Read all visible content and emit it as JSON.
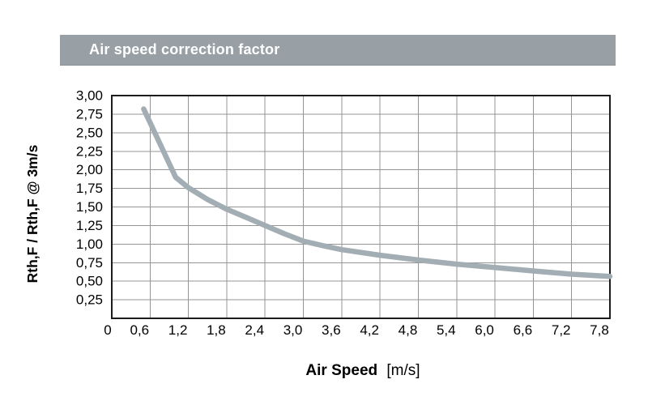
{
  "header": {
    "title": "Air speed correction factor"
  },
  "colors": {
    "title_bar_bg": "#98a0a5",
    "title_text": "#ffffff",
    "curve": "#a2adb4",
    "grid": "#949494",
    "border": "#1c1c1c",
    "text": "#000000"
  },
  "chart_data": {
    "type": "line",
    "title": "Air speed correction factor",
    "xlabel": "Air Speed",
    "xlabel_unit": "[m/s]",
    "ylabel": "Rth,F / Rth,F @ 3m/s",
    "xlim": [
      0,
      7.8
    ],
    "ylim": [
      0,
      3.0
    ],
    "grid": true,
    "legend": "none",
    "x_ticks": [
      0,
      0.6,
      1.2,
      1.8,
      2.4,
      3.0,
      3.6,
      4.2,
      4.8,
      5.4,
      6.0,
      6.6,
      7.2,
      7.8
    ],
    "x_tick_labels": [
      "0",
      "0,6",
      "1,2",
      "1,8",
      "2,4",
      "3,0",
      "3,6",
      "4,2",
      "4,8",
      "5,4",
      "6,0",
      "6,6",
      "7,2",
      "7,8"
    ],
    "y_ticks": [
      3.0,
      2.75,
      2.5,
      2.25,
      2.0,
      1.75,
      1.5,
      1.25,
      1.0,
      0.75,
      0.5,
      0.25
    ],
    "y_tick_labels": [
      "3,00",
      "2,75",
      "2,50",
      "2,25",
      "2,00",
      "1,75",
      "1,50",
      "1,25",
      "1,00",
      "0,75",
      "0,50",
      "0,25"
    ],
    "series": [
      {
        "name": "Rth,F / Rth,F @ 3m/s correction factor",
        "color": "#a2adb4",
        "points": [
          [
            0.5,
            2.82
          ],
          [
            1.0,
            1.9
          ],
          [
            1.2,
            1.76
          ],
          [
            1.5,
            1.6
          ],
          [
            1.8,
            1.47
          ],
          [
            2.1,
            1.36
          ],
          [
            2.4,
            1.25
          ],
          [
            2.7,
            1.14
          ],
          [
            3.0,
            1.04
          ],
          [
            3.3,
            0.98
          ],
          [
            3.6,
            0.925
          ],
          [
            4.2,
            0.85
          ],
          [
            4.8,
            0.785
          ],
          [
            5.4,
            0.73
          ],
          [
            6.0,
            0.685
          ],
          [
            6.6,
            0.638
          ],
          [
            7.2,
            0.595
          ],
          [
            7.8,
            0.565
          ]
        ]
      }
    ]
  }
}
